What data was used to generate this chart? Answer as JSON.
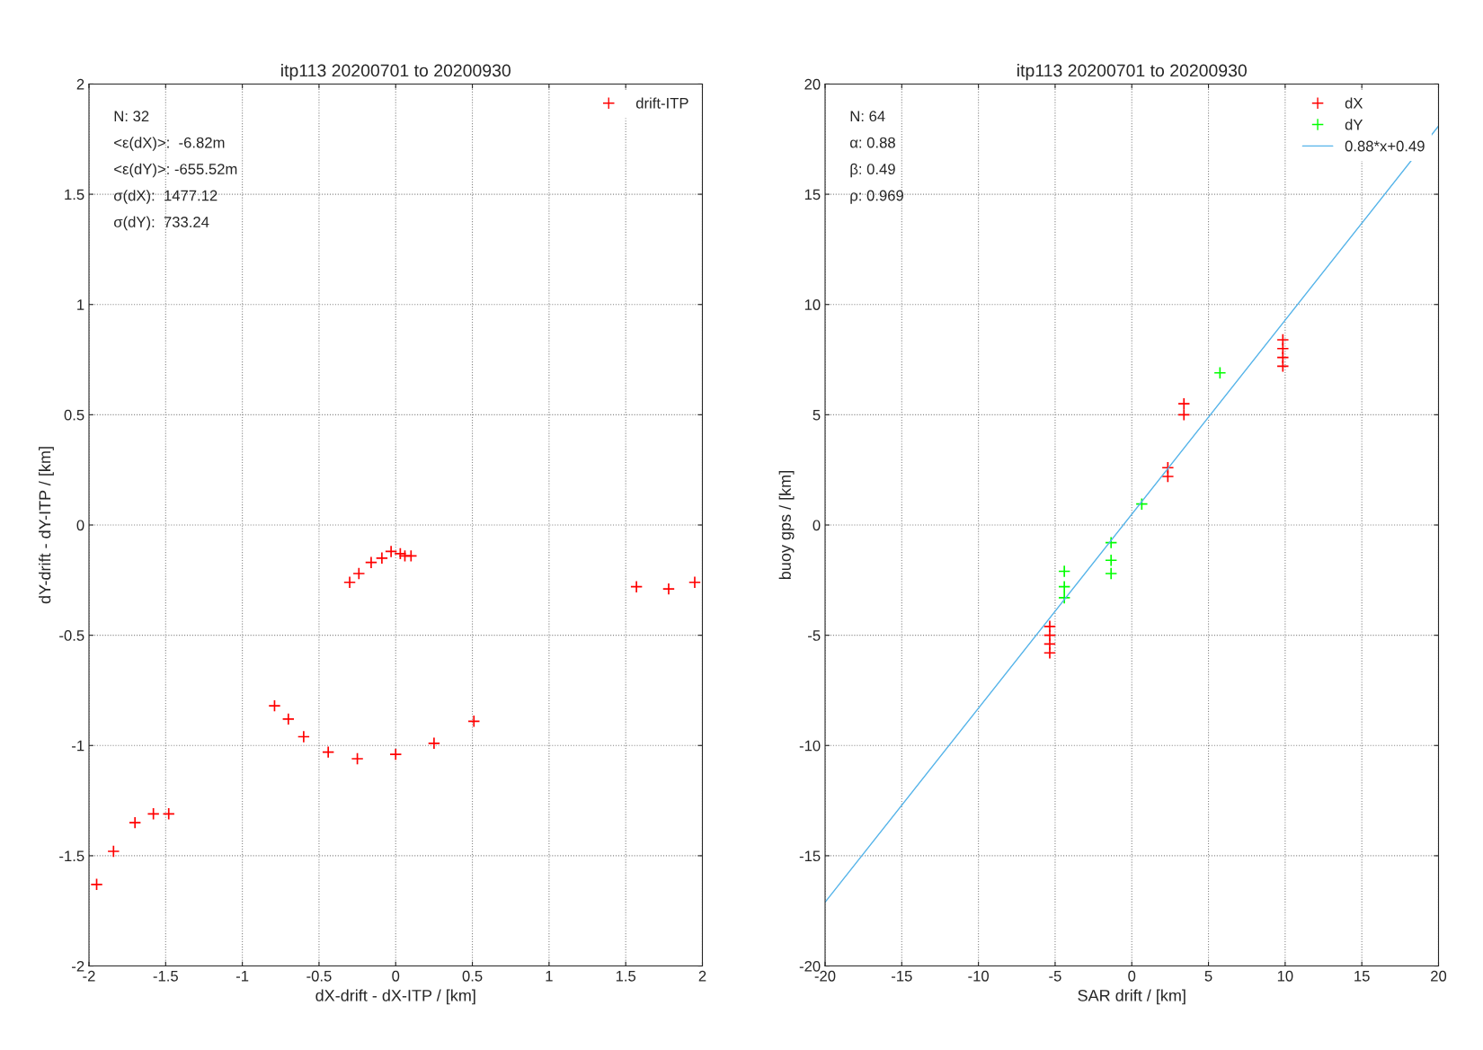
{
  "chart_data": [
    {
      "type": "scatter",
      "title": "itp113 20200701 to 20200930",
      "xlabel": "dX-drift - dX-ITP / [km]",
      "ylabel": "dY-drift - dY-ITP / [km]",
      "xlim": [
        -2,
        2
      ],
      "ylim": [
        -2,
        2
      ],
      "xticks": [
        -2,
        -1.5,
        -1,
        -0.5,
        0,
        0.5,
        1,
        1.5,
        2
      ],
      "yticks": [
        -2,
        -1.5,
        -1,
        -0.5,
        0,
        0.5,
        1,
        1.5,
        2
      ],
      "grid": true,
      "legend": "top right",
      "marker": "cross",
      "annotations": [
        "N: 32",
        "<ε(dX)>:  -6.82m",
        "<ε(dY)>: -655.52m",
        "σ(dX):  1477.12",
        "σ(dY):  733.24"
      ],
      "series": [
        {
          "name": "drift-ITP",
          "color": "#ff0000",
          "x": [
            -1.95,
            -1.84,
            -1.7,
            -1.58,
            -1.48,
            -0.79,
            -0.7,
            -0.6,
            -0.44,
            -0.25,
            0.0,
            0.25,
            0.51,
            -0.3,
            -0.24,
            -0.16,
            -0.09,
            -0.03,
            0.03,
            0.06,
            0.1,
            1.57,
            1.78,
            1.95
          ],
          "values": [
            -1.63,
            -1.48,
            -1.35,
            -1.31,
            -1.31,
            -0.82,
            -0.88,
            -0.96,
            -1.03,
            -1.06,
            -1.04,
            -0.99,
            -0.89,
            -0.26,
            -0.22,
            -0.17,
            -0.15,
            -0.12,
            -0.13,
            -0.14,
            -0.14,
            -0.28,
            -0.29,
            -0.26
          ]
        }
      ]
    },
    {
      "type": "scatter",
      "title": "itp113 20200701 to 20200930",
      "xlabel": "SAR drift / [km]",
      "ylabel": "buoy gps / [km]",
      "xlim": [
        -20,
        20
      ],
      "ylim": [
        -20,
        20
      ],
      "xticks": [
        -20,
        -15,
        -10,
        -5,
        0,
        5,
        10,
        15,
        20
      ],
      "yticks": [
        -20,
        -15,
        -10,
        -5,
        0,
        5,
        10,
        15,
        20
      ],
      "grid": true,
      "legend": "top right",
      "marker": "cross",
      "annotations": [
        "N: 64",
        "α: 0.88",
        "β: 0.49",
        "ρ: 0.969"
      ],
      "series": [
        {
          "name": "dX",
          "color": "#ff0000",
          "x": [
            -5.35,
            -5.35,
            -5.35,
            -5.35,
            2.35,
            2.35,
            3.4,
            3.4,
            9.85,
            9.85,
            9.85,
            9.85
          ],
          "values": [
            -5.8,
            -5.4,
            -5.0,
            -4.6,
            2.2,
            2.6,
            5.0,
            5.5,
            7.2,
            7.6,
            8.0,
            8.4
          ]
        },
        {
          "name": "dY",
          "color": "#00ff00",
          "x": [
            -4.4,
            -4.4,
            -4.4,
            -1.35,
            -1.35,
            -1.35,
            0.65,
            5.75
          ],
          "values": [
            -3.3,
            -2.8,
            -2.1,
            -2.2,
            -1.6,
            -0.8,
            0.95,
            6.9
          ]
        },
        {
          "name": "0.88*x+0.49",
          "type": "line",
          "color": "#56b4e9",
          "marker": "none",
          "x": [
            -20,
            20
          ],
          "values": [
            -17.11,
            18.09
          ]
        }
      ]
    }
  ]
}
